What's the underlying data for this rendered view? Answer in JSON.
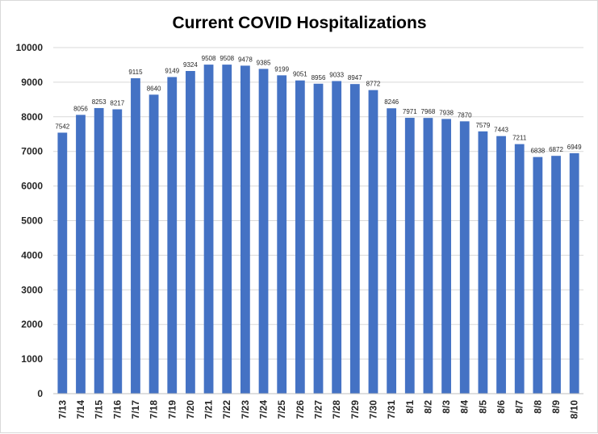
{
  "chart_data": {
    "type": "bar",
    "title": "Current COVID Hospitalizations",
    "xlabel": "",
    "ylabel": "",
    "ylim": [
      0,
      10000
    ],
    "yticks": [
      0,
      1000,
      2000,
      3000,
      4000,
      5000,
      6000,
      7000,
      8000,
      9000,
      10000
    ],
    "grid": true,
    "legend": "none",
    "bar_color": "#4472C4",
    "categories": [
      "7/13",
      "7/14",
      "7/15",
      "7/16",
      "7/17",
      "7/18",
      "7/19",
      "7/20",
      "7/21",
      "7/22",
      "7/23",
      "7/24",
      "7/25",
      "7/26",
      "7/27",
      "7/28",
      "7/29",
      "7/30",
      "7/31",
      "8/1",
      "8/2",
      "8/3",
      "8/4",
      "8/5",
      "8/6",
      "8/7",
      "8/8",
      "8/9",
      "8/10"
    ],
    "values": [
      7542,
      8056,
      8253,
      8217,
      9115,
      8640,
      9149,
      9324,
      9508,
      9508,
      9478,
      9385,
      9199,
      9051,
      8956,
      9033,
      8947,
      8772,
      8246,
      7971,
      7968,
      7938,
      7870,
      7579,
      7443,
      7211,
      6838,
      6872,
      6949
    ]
  }
}
